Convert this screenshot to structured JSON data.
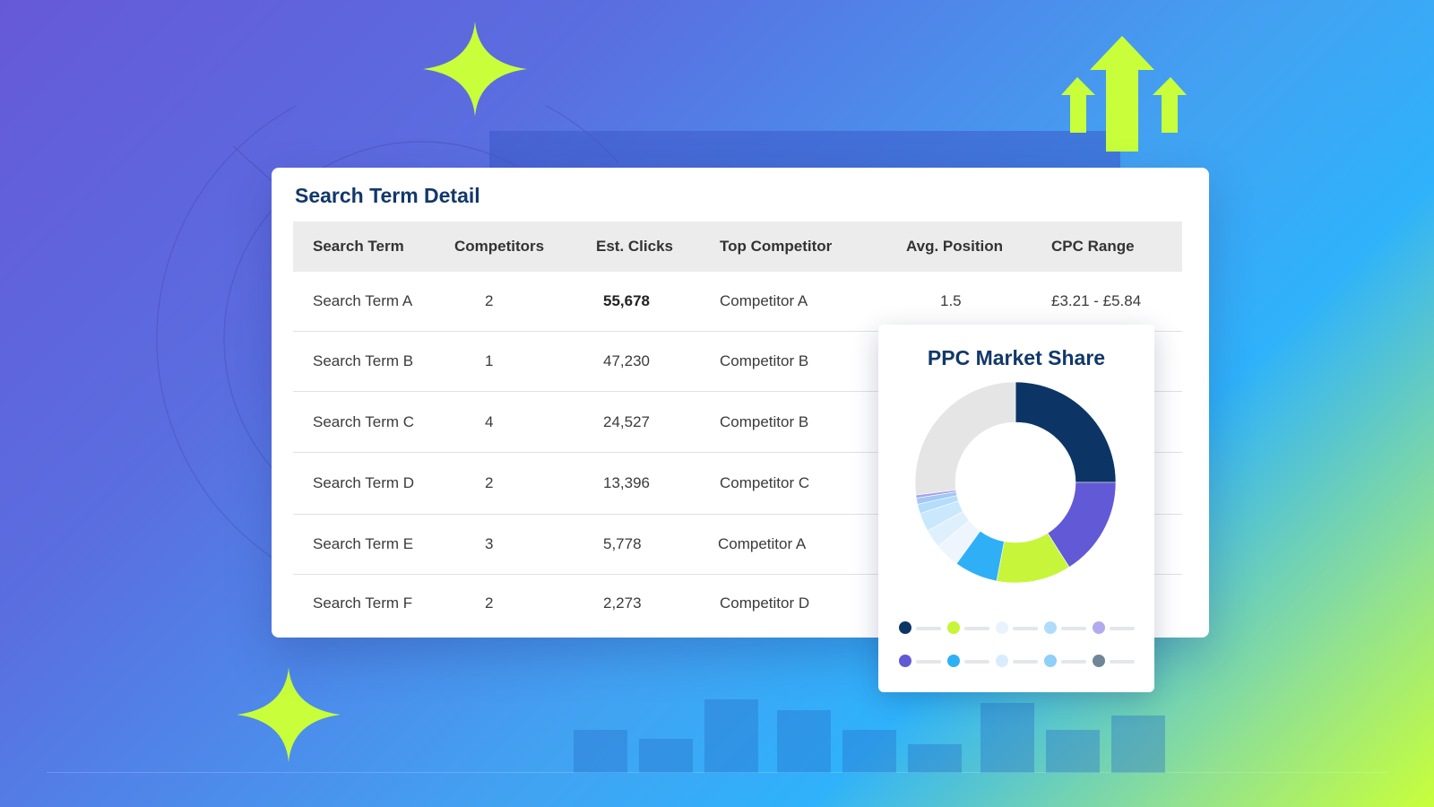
{
  "table": {
    "title": "Search Term Detail",
    "headers": [
      "Search Term",
      "Competitors",
      "Est. Clicks",
      "Top Competitor",
      "Avg. Position",
      "CPC Range"
    ],
    "rows": [
      {
        "term": "Search Term A",
        "competitors": "2",
        "clicks": "55,678",
        "top": "Competitor A",
        "position": "1.5",
        "cpc": "£3.21 - £5.84"
      },
      {
        "term": "Search Term B",
        "competitors": "1",
        "clicks": "47,230",
        "top": "Competitor B"
      },
      {
        "term": "Search Term C",
        "competitors": "4",
        "clicks": "24,527",
        "top": "Competitor B"
      },
      {
        "term": "Search Term D",
        "competitors": "2",
        "clicks": "13,396",
        "top": "Competitor C"
      },
      {
        "term": "Search Term E",
        "competitors": "3",
        "clicks": "5,778",
        "top": "Competitor A"
      },
      {
        "term": "Search Term F",
        "competitors": "2",
        "clicks": "2,273",
        "top": "Competitor D"
      }
    ]
  },
  "chart_data": {
    "type": "pie",
    "title": "PPC Market Share",
    "donut": true,
    "values": [
      25,
      16,
      12,
      7,
      4,
      3,
      3,
      1.5,
      1,
      0.5,
      27
    ],
    "colors": [
      "#0c3566",
      "#6259d6",
      "#c6f53a",
      "#2fb0f6",
      "#eef5fd",
      "#dff0fd",
      "#c9e8fd",
      "#b4dcfb",
      "#a2c8f5",
      "#a9a3e8",
      "#e5e5e5"
    ],
    "legend_colors": [
      "#0c3566",
      "#c6f53a",
      "#e9f3fd",
      "#b0dcfa",
      "#b2aaf0",
      "#6259d6",
      "#2fb0f6",
      "#d8ecfd",
      "#8ed0f7",
      "#718599"
    ],
    "legend_placement": "bottom"
  },
  "colors": {
    "accent": "#c8ff3a",
    "navy": "#12386a"
  }
}
